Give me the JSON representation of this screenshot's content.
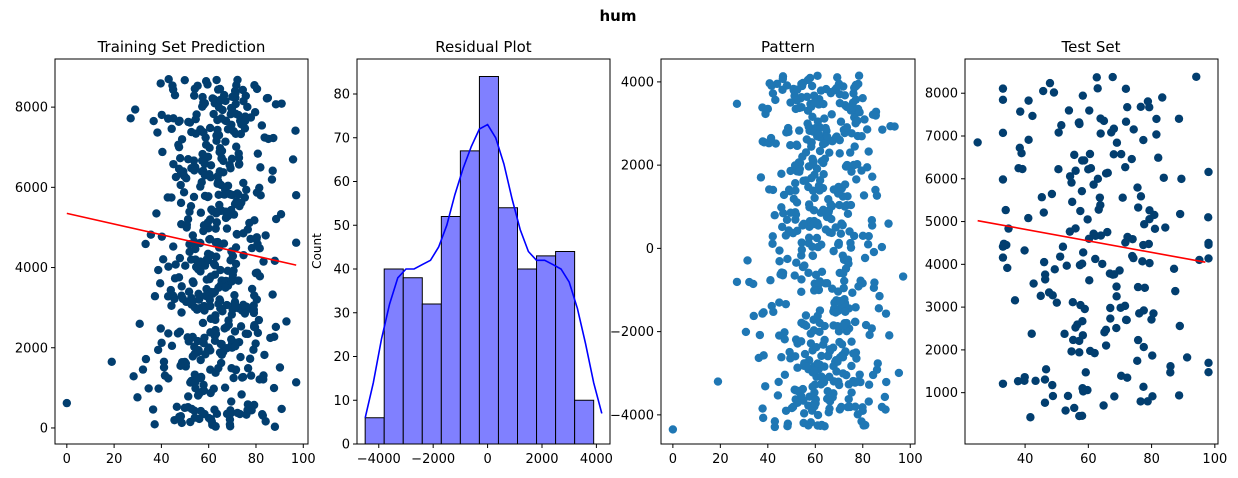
{
  "suptitle": "hum",
  "colors": {
    "dark_navy": "#023e6f",
    "scatter_blue": "#1f77b4",
    "fit_red": "#ff0000",
    "hist_fill": "#8080ff",
    "kde_blue": "#0000ff"
  },
  "chart_data": [
    {
      "type": "scatter",
      "title": "Training Set Prediction",
      "xlabel": "",
      "ylabel": "",
      "xlim": [
        -5,
        102
      ],
      "ylim": [
        -400,
        9200
      ],
      "xticks": [
        0,
        20,
        40,
        60,
        80,
        100
      ],
      "yticks": [
        0,
        2000,
        4000,
        6000,
        8000
      ],
      "n_points": 520,
      "point_cloud": {
        "x_center": 63,
        "x_spread": 13,
        "x_range": [
          19,
          97
        ],
        "y_range": [
          0,
          8700
        ],
        "outliers": [
          [
            0,
            620
          ],
          [
            19,
            1650
          ],
          [
            88,
            30
          ]
        ]
      },
      "fit_line": {
        "x": [
          0,
          97
        ],
        "y": [
          5350,
          4060
        ]
      },
      "grid": false,
      "legend": "none"
    },
    {
      "type": "bar",
      "subtype": "histogram_with_kde",
      "title": "Residual Plot",
      "xlabel": "",
      "ylabel": "Count",
      "xlim": [
        -4800,
        4500
      ],
      "ylim": [
        0,
        88
      ],
      "xticks": [
        -4000,
        -2000,
        0,
        2000,
        4000
      ],
      "yticks": [
        0,
        10,
        20,
        30,
        40,
        50,
        60,
        70,
        80
      ],
      "bin_edges": [
        -4500,
        -3800,
        -3100,
        -2400,
        -1700,
        -1000,
        -300,
        400,
        1100,
        1800,
        2500,
        3200,
        3900
      ],
      "values": [
        6,
        40,
        38,
        32,
        52,
        67,
        84,
        54,
        40,
        43,
        44,
        10
      ],
      "kde": {
        "x": [
          -4500,
          -4200,
          -3900,
          -3600,
          -3300,
          -3000,
          -2700,
          -2400,
          -2100,
          -1800,
          -1500,
          -1200,
          -900,
          -600,
          -300,
          0,
          300,
          600,
          900,
          1200,
          1500,
          1800,
          2100,
          2400,
          2700,
          3000,
          3300,
          3600,
          3900,
          4200
        ],
        "y": [
          6,
          14,
          24,
          32,
          38,
          40,
          40,
          41,
          42,
          45,
          50,
          57,
          63,
          68,
          72,
          73,
          70,
          64,
          56,
          49,
          44,
          42,
          42,
          41,
          40,
          37,
          31,
          23,
          14,
          7
        ]
      },
      "grid": false,
      "legend": "none"
    },
    {
      "type": "scatter",
      "title": "Pattern",
      "xlabel": "",
      "ylabel": "",
      "xlim": [
        -5,
        102
      ],
      "ylim": [
        -4700,
        4550
      ],
      "xticks": [
        0,
        20,
        40,
        60,
        80,
        100
      ],
      "yticks": [
        -4000,
        -2000,
        0,
        2000,
        4000
      ],
      "n_points": 520,
      "point_cloud": {
        "x_center": 63,
        "x_spread": 13,
        "x_range": [
          19,
          97
        ],
        "y_range": [
          -4300,
          4150
        ],
        "outliers": [
          [
            0,
            -4350
          ],
          [
            19,
            -3200
          ]
        ]
      },
      "grid": false,
      "legend": "none"
    },
    {
      "type": "scatter",
      "title": "Test Set",
      "xlabel": "",
      "ylabel": "",
      "xlim": [
        21,
        101
      ],
      "ylim": [
        -200,
        8800
      ],
      "xticks": [
        40,
        60,
        80,
        100
      ],
      "yticks": [
        1000,
        2000,
        3000,
        4000,
        5000,
        6000,
        7000,
        8000
      ],
      "n_points": 215,
      "point_cloud": {
        "x_center": 62,
        "x_spread": 16,
        "x_range": [
          25,
          98
        ],
        "y_range": [
          400,
          8400
        ],
        "outliers": [
          [
            25,
            6850
          ]
        ]
      },
      "fit_line": {
        "x": [
          25,
          97
        ],
        "y": [
          5020,
          4050
        ]
      },
      "grid": false,
      "legend": "none"
    }
  ]
}
